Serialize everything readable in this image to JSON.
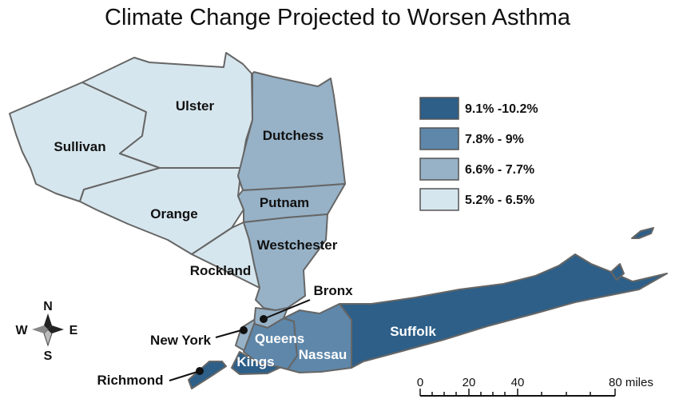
{
  "title": "Climate Change Projected to Worsen Asthma",
  "legend": [
    {
      "label": "9.1% -10.2%",
      "color": "#2d5f88"
    },
    {
      "label": "7.8% - 9%",
      "color": "#5e87aa"
    },
    {
      "label": "6.6% - 7.7%",
      "color": "#97b2c7"
    },
    {
      "label": "5.2% - 6.5%",
      "color": "#d6e6ee"
    }
  ],
  "counties": {
    "sullivan": "Sullivan",
    "ulster": "Ulster",
    "orange": "Orange",
    "rockland": "Rockland",
    "dutchess": "Dutchess",
    "putnam": "Putnam",
    "westchester": "Westchester",
    "bronx": "Bronx",
    "new_york": "New York",
    "queens": "Queens",
    "kings": "Kings",
    "nassau": "Nassau",
    "suffolk": "Suffolk",
    "richmond": "Richmond"
  },
  "compass": {
    "n": "N",
    "s": "S",
    "e": "E",
    "w": "W"
  },
  "scale": {
    "ticks": [
      "0",
      "20",
      "40",
      "80 miles"
    ]
  }
}
